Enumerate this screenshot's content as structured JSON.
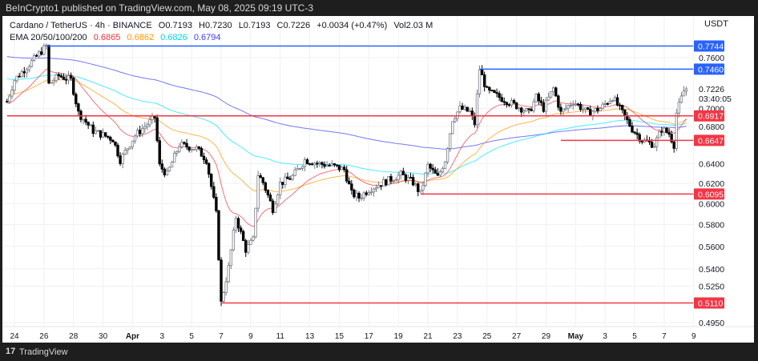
{
  "header": {
    "published": "BeInCrypto1 published on TradingView.com, May 08, 2025 09:19 UTC-3"
  },
  "legend": {
    "symbol": "Cardano / TetherUS · 4h · BINANCE",
    "open": "O0.7193",
    "high": "H0.7230",
    "low": "L0.7193",
    "close": "C0.7226",
    "change": "+0.0034 (+0.47%)",
    "volume": "Vol2.03 M",
    "ema_label": "EMA 20/50/100/200",
    "ema_values": [
      "0.6865",
      "0.6862",
      "0.6826",
      "0.6794"
    ]
  },
  "colors": {
    "ema20": "#f23645",
    "ema50": "#ff9800",
    "ema100": "#00e5ff",
    "ema200": "#3d3dff",
    "support": "#f23645",
    "resistance": "#2962ff",
    "up_candle": "#787b86",
    "down_candle": "#000000"
  },
  "footer": {
    "brand": "TradingView"
  },
  "chart_data": {
    "type": "candlestick",
    "symbol": "ADA/USDT",
    "interval": "4h",
    "y_scale": "log",
    "currency": "USDT",
    "last_price": "0.7226",
    "countdown": "03:40:05",
    "grid": true,
    "y_ticks": [
      "0.7600",
      "0.7000",
      "0.6800",
      "0.6400",
      "0.6200",
      "0.6000",
      "0.5800",
      "0.5600",
      "0.5400",
      "0.5250",
      "0.4950"
    ],
    "x_ticks": [
      {
        "label": "24",
        "date": "2025-03-24"
      },
      {
        "label": "26",
        "date": "2025-03-26"
      },
      {
        "label": "28",
        "date": "2025-03-28"
      },
      {
        "label": "30",
        "date": "2025-03-30"
      },
      {
        "label": "Apr",
        "date": "2025-04-01"
      },
      {
        "label": "3",
        "date": "2025-04-03"
      },
      {
        "label": "5",
        "date": "2025-04-05"
      },
      {
        "label": "7",
        "date": "2025-04-07"
      },
      {
        "label": "9",
        "date": "2025-04-09"
      },
      {
        "label": "11",
        "date": "2025-04-11"
      },
      {
        "label": "13",
        "date": "2025-04-13"
      },
      {
        "label": "15",
        "date": "2025-04-15"
      },
      {
        "label": "17",
        "date": "2025-04-17"
      },
      {
        "label": "19",
        "date": "2025-04-19"
      },
      {
        "label": "21",
        "date": "2025-04-21"
      },
      {
        "label": "23",
        "date": "2025-04-23"
      },
      {
        "label": "25",
        "date": "2025-04-25"
      },
      {
        "label": "27",
        "date": "2025-04-27"
      },
      {
        "label": "29",
        "date": "2025-04-29"
      },
      {
        "label": "May",
        "date": "2025-05-01"
      },
      {
        "label": "3",
        "date": "2025-05-03"
      },
      {
        "label": "5",
        "date": "2025-05-05"
      },
      {
        "label": "7",
        "date": "2025-05-07"
      },
      {
        "label": "9",
        "date": "2025-05-09"
      }
    ],
    "levels": [
      {
        "label": "0.7744",
        "price": 0.7744,
        "from": "2025-03-26T04:00",
        "kind": "resistance"
      },
      {
        "label": "0.7460",
        "price": 0.746,
        "from": "2025-04-24T12:00",
        "kind": "resistance"
      },
      {
        "label": "0.6917",
        "price": 0.6917,
        "from": "2025-03-23T12:00",
        "kind": "support"
      },
      {
        "label": "0.6647",
        "price": 0.6647,
        "from": "2025-04-30T00:00",
        "kind": "support"
      },
      {
        "label": "0.6095",
        "price": 0.6095,
        "from": "2025-04-20T12:00",
        "kind": "support"
      },
      {
        "label": "0.5110",
        "price": 0.511,
        "from": "2025-04-07T00:00",
        "kind": "support"
      }
    ],
    "price_path": [
      [
        "2025-03-23T12:00",
        0.708
      ],
      [
        "2025-03-24T00:00",
        0.733
      ],
      [
        "2025-03-25T04:00",
        0.755
      ],
      [
        "2025-03-26T04:00",
        0.7744
      ],
      [
        "2025-03-26T08:00",
        0.728
      ],
      [
        "2025-03-27T00:00",
        0.738
      ],
      [
        "2025-03-27T20:00",
        0.733
      ],
      [
        "2025-03-28T08:00",
        0.695
      ],
      [
        "2025-03-29T08:00",
        0.675
      ],
      [
        "2025-03-30T16:00",
        0.666
      ],
      [
        "2025-03-31T04:00",
        0.644
      ],
      [
        "2025-04-01T04:00",
        0.67
      ],
      [
        "2025-04-02T12:00",
        0.69
      ],
      [
        "2025-04-02T20:00",
        0.638
      ],
      [
        "2025-04-03T08:00",
        0.629
      ],
      [
        "2025-04-04T04:00",
        0.66
      ],
      [
        "2025-04-05T08:00",
        0.656
      ],
      [
        "2025-04-06T00:00",
        0.644
      ],
      [
        "2025-04-06T16:00",
        0.59
      ],
      [
        "2025-04-07T00:00",
        0.511
      ],
      [
        "2025-04-07T12:00",
        0.541
      ],
      [
        "2025-04-08T00:00",
        0.587
      ],
      [
        "2025-04-08T16:00",
        0.557
      ],
      [
        "2025-04-09T04:00",
        0.566
      ],
      [
        "2025-04-09T12:00",
        0.629
      ],
      [
        "2025-04-09T20:00",
        0.621
      ],
      [
        "2025-04-10T12:00",
        0.595
      ],
      [
        "2025-04-11T00:00",
        0.62
      ],
      [
        "2025-04-11T20:00",
        0.627
      ],
      [
        "2025-04-12T16:00",
        0.644
      ],
      [
        "2025-04-13T16:00",
        0.64
      ],
      [
        "2025-04-14T12:00",
        0.638
      ],
      [
        "2025-04-15T08:00",
        0.634
      ],
      [
        "2025-04-15T20:00",
        0.61
      ],
      [
        "2025-04-16T08:00",
        0.606
      ],
      [
        "2025-04-17T00:00",
        0.614
      ],
      [
        "2025-04-18T00:00",
        0.621
      ],
      [
        "2025-04-19T04:00",
        0.629
      ],
      [
        "2025-04-20T00:00",
        0.621
      ],
      [
        "2025-04-20T12:00",
        0.61
      ],
      [
        "2025-04-21T00:00",
        0.638
      ],
      [
        "2025-04-21T16:00",
        0.626
      ],
      [
        "2025-04-22T04:00",
        0.644
      ],
      [
        "2025-04-22T16:00",
        0.688
      ],
      [
        "2025-04-23T04:00",
        0.7
      ],
      [
        "2025-04-23T20:00",
        0.696
      ],
      [
        "2025-04-24T04:00",
        0.683
      ],
      [
        "2025-04-24T12:00",
        0.746
      ],
      [
        "2025-04-25T00:00",
        0.72
      ],
      [
        "2025-04-26T04:00",
        0.71
      ],
      [
        "2025-04-27T08:00",
        0.7
      ],
      [
        "2025-04-27T20:00",
        0.695
      ],
      [
        "2025-04-28T08:00",
        0.713
      ],
      [
        "2025-04-28T20:00",
        0.7
      ],
      [
        "2025-04-29T12:00",
        0.723
      ],
      [
        "2025-04-30T00:00",
        0.695
      ],
      [
        "2025-04-30T20:00",
        0.708
      ],
      [
        "2025-05-01T20:00",
        0.695
      ],
      [
        "2025-05-02T16:00",
        0.7
      ],
      [
        "2025-05-03T12:00",
        0.713
      ],
      [
        "2025-05-04T04:00",
        0.695
      ],
      [
        "2025-05-04T20:00",
        0.677
      ],
      [
        "2025-05-05T12:00",
        0.665
      ],
      [
        "2025-05-06T08:00",
        0.66
      ],
      [
        "2025-05-06T20:00",
        0.677
      ],
      [
        "2025-05-07T08:00",
        0.672
      ],
      [
        "2025-05-07T16:00",
        0.66
      ],
      [
        "2025-05-07T20:00",
        0.695
      ],
      [
        "2025-05-08T08:00",
        0.72
      ],
      [
        "2025-05-08T12:00",
        0.7226
      ]
    ],
    "ema_start": {
      "ema20": 0.705,
      "ema50": 0.716,
      "ema100": 0.735,
      "ema200": 0.762
    }
  }
}
